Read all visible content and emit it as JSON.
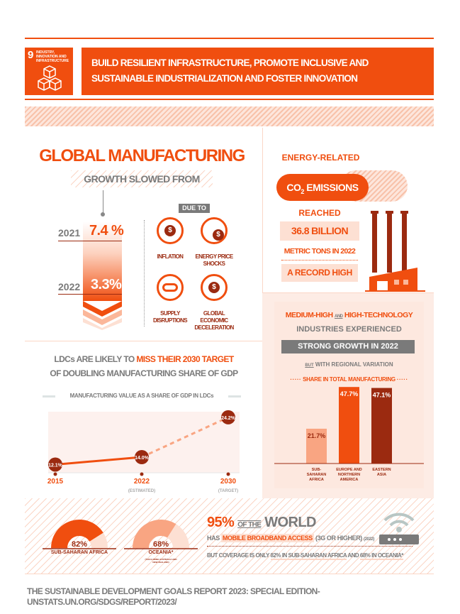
{
  "header": {
    "goal_number": "9",
    "goal_name": "INDUSTRY, INNOVATION AND INFRASTRUCTURE",
    "title_line1": "BUILD RESILIENT INFRASTRUCTURE, PROMOTE INCLUSIVE AND",
    "title_line2": "SUSTAINABLE INDUSTRIALIZATION AND FOSTER INNOVATION"
  },
  "manufacturing": {
    "title": "GLOBAL MANUFACTURING",
    "subtitle": "GROWTH SLOWED FROM",
    "year1": "2021",
    "value1": "7.4 %",
    "year2": "2022",
    "value2": "3.3%",
    "due_to": "DUE TO",
    "causes": [
      {
        "label": "INFLATION",
        "icon": "inflation-icon"
      },
      {
        "label": "ENERGY PRICE SHOCKS",
        "icon": "energy-price-icon"
      },
      {
        "label": "SUPPLY DISRUPTIONS",
        "icon": "broken-chain-icon"
      },
      {
        "label": "GLOBAL ECONOMIC DECELERATION",
        "icon": "decline-icon"
      }
    ]
  },
  "emissions": {
    "line1": "ENERGY-RELATED",
    "cloud_co": "CO",
    "cloud_sub": "2",
    "cloud_rest": " EMISSIONS",
    "reached": "REACHED",
    "amount": "36.8 BILLION",
    "unit": "METRIC TONS IN 2022",
    "record": "A RECORD HIGH"
  },
  "ldc": {
    "title_a": "LDCs ARE LIKELY TO ",
    "title_b": "MISS THEIR 2030 TARGET",
    "title_c": "OF DOUBLING MANUFACTURING SHARE OF GDP",
    "chart_title": "MANUFACTURING VALUE AS A SHARE OF GDP IN LDCs"
  },
  "tech": {
    "l1a": "MEDIUM-HIGH",
    "l1and": "AND",
    "l1b": "HIGH-TECHNOLOGY",
    "l2": "INDUSTRIES EXPERIENCED",
    "l3": "STRONG GROWTH IN 2022",
    "l4but": "BUT",
    "l4": " WITH REGIONAL VARIATION",
    "chart_title": "SHARE IN TOTAL MANUFACTURING"
  },
  "chart_data": [
    {
      "type": "line",
      "title": "MANUFACTURING VALUE AS A SHARE OF GDP IN LDCs",
      "categories": [
        "2015",
        "2022",
        "2030"
      ],
      "sublabels": [
        "",
        "(ESTIMATED)",
        "(TARGET)"
      ],
      "values": [
        12.1,
        14.0,
        24.2
      ],
      "value_labels": [
        "12.1%",
        "14.0%",
        "24.2%"
      ],
      "ylim": [
        10,
        26
      ],
      "projection_dashed_from": "2022"
    },
    {
      "type": "bar",
      "title": "SHARE IN TOTAL MANUFACTURING",
      "categories": [
        "SUB-SAHARAN AFRICA",
        "EUROPE AND NORTHERN AMERICA",
        "EASTERN ASIA"
      ],
      "values": [
        21.7,
        47.7,
        47.1
      ],
      "value_labels": [
        "21.7%",
        "47.7%",
        "47.1%"
      ],
      "colors": [
        "#f9a582",
        "#f04e0f",
        "#9b2a10"
      ],
      "ylim": [
        0,
        50
      ]
    }
  ],
  "broadband": {
    "pct": "95%",
    "of_the": "OF THE",
    "world": "WORLD",
    "has": "HAS ",
    "mba": "MOBILE BROADBAND ACCESS",
    "spec": " (3G OR HIGHER) ",
    "year": "(2022)",
    "cov_a": "BUT COVERAGE IS ONLY ",
    "cov_b": "82% IN SUB-SAHARAN AFRICA",
    "cov_c": " AND ",
    "cov_d": "68% IN OCEANIA*",
    "gauges": [
      {
        "value": 82,
        "label": "82%",
        "region": "SUB-SAHARAN AFRICA",
        "note": "",
        "color": "#f04e0f"
      },
      {
        "value": 68,
        "label": "68%",
        "region": "OCEANIA*",
        "note": "(*EXCLUDING AUSTRALIA AND NEW ZEALAND)",
        "color": "#f9a582"
      }
    ]
  },
  "footer": "THE SUSTAINABLE DEVELOPMENT GOALS REPORT 2023: SPECIAL EDITION- UNSTATS.UN.ORG/SDGS/REPORT/2023/"
}
